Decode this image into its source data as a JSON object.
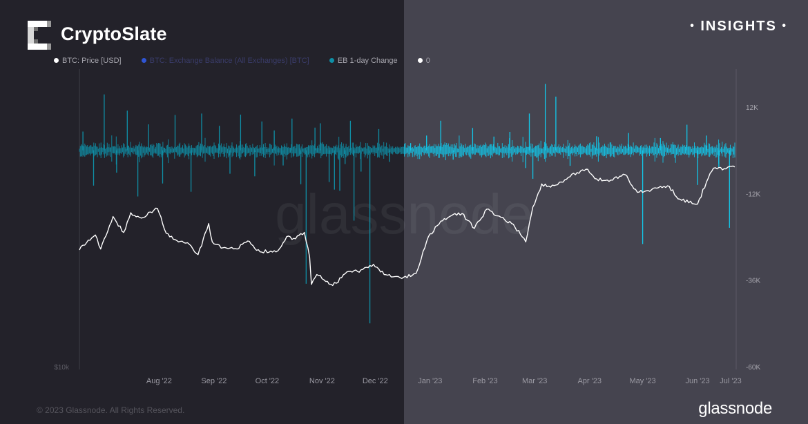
{
  "header": {
    "brand": "CryptoSlate",
    "badge": "INSIGHTS",
    "badge_dot": "•"
  },
  "watermark": "glassnode",
  "footer": {
    "copyright": "© 2023 Glassnode. All Rights Reserved.",
    "logo_text": "glassnode"
  },
  "colors": {
    "price": "#ffffff",
    "exchange_balance": "#2f55d4",
    "eb_change": "#0f8fa6",
    "eb_change_highlight": "#12c8ea",
    "zero": "#ffffff"
  },
  "legend": [
    {
      "label": "BTC: Price [USD]",
      "color": "#ffffff"
    },
    {
      "label": "BTC: Exchange Balance (All Exchanges) [BTC]",
      "color": "#2f55d4"
    },
    {
      "label": "EB 1-day Change",
      "color": "#0f8fa6"
    },
    {
      "label": "0",
      "color": "#ffffff"
    }
  ],
  "chart_data": {
    "type": "line",
    "x_ticks": [
      "Aug '22",
      "Sep '22",
      "Oct '22",
      "Nov '22",
      "Dec '22",
      "Jan '23",
      "Feb '23",
      "Mar '23",
      "Apr '23",
      "May '23",
      "Jun '23",
      "Jul '23"
    ],
    "y_left_ticks": [
      "$10k"
    ],
    "y_right_ticks": [
      "12K",
      "-12K",
      "-36K",
      "-60K"
    ],
    "y_right_range": [
      -60000,
      24000
    ],
    "grid": false,
    "series": [
      {
        "name": "BTC: Price [USD]",
        "axis": "left-log",
        "points": [
          [
            "2022-07-01",
            19300
          ],
          [
            "2022-07-06",
            20400
          ],
          [
            "2022-07-10",
            21000
          ],
          [
            "2022-07-13",
            19400
          ],
          [
            "2022-07-20",
            23300
          ],
          [
            "2022-07-26",
            21300
          ],
          [
            "2022-07-30",
            23800
          ],
          [
            "2022-08-05",
            23100
          ],
          [
            "2022-08-10",
            23900
          ],
          [
            "2022-08-14",
            24400
          ],
          [
            "2022-08-19",
            21200
          ],
          [
            "2022-08-26",
            20200
          ],
          [
            "2022-08-31",
            20100
          ],
          [
            "2022-09-06",
            18800
          ],
          [
            "2022-09-12",
            22400
          ],
          [
            "2022-09-14",
            20200
          ],
          [
            "2022-09-19",
            19500
          ],
          [
            "2022-09-28",
            19400
          ],
          [
            "2022-10-04",
            20300
          ],
          [
            "2022-10-11",
            19100
          ],
          [
            "2022-10-21",
            19200
          ],
          [
            "2022-10-26",
            20800
          ],
          [
            "2022-10-30",
            20600
          ],
          [
            "2022-11-05",
            21300
          ],
          [
            "2022-11-08",
            18500
          ],
          [
            "2022-11-09",
            15900
          ],
          [
            "2022-11-12",
            16800
          ],
          [
            "2022-11-21",
            15800
          ],
          [
            "2022-11-30",
            17100
          ],
          [
            "2022-12-05",
            17100
          ],
          [
            "2022-12-14",
            17800
          ],
          [
            "2022-12-20",
            16800
          ],
          [
            "2022-12-31",
            16550
          ],
          [
            "2023-01-07",
            16900
          ],
          [
            "2023-01-14",
            20800
          ],
          [
            "2023-01-21",
            22700
          ],
          [
            "2023-01-29",
            23700
          ],
          [
            "2023-02-02",
            23700
          ],
          [
            "2023-02-09",
            21800
          ],
          [
            "2023-02-16",
            24300
          ],
          [
            "2023-02-24",
            23200
          ],
          [
            "2023-03-03",
            22300
          ],
          [
            "2023-03-10",
            20200
          ],
          [
            "2023-03-14",
            24600
          ],
          [
            "2023-03-19",
            28000
          ],
          [
            "2023-03-24",
            27500
          ],
          [
            "2023-03-30",
            28300
          ],
          [
            "2023-04-11",
            30300
          ],
          [
            "2023-04-14",
            30400
          ],
          [
            "2023-04-19",
            28800
          ],
          [
            "2023-04-26",
            28400
          ],
          [
            "2023-05-05",
            29500
          ],
          [
            "2023-05-12",
            26700
          ],
          [
            "2023-05-20",
            27100
          ],
          [
            "2023-05-29",
            27700
          ],
          [
            "2023-06-05",
            25700
          ],
          [
            "2023-06-15",
            25000
          ],
          [
            "2023-06-20",
            28300
          ],
          [
            "2023-06-24",
            30600
          ],
          [
            "2023-06-30",
            30500
          ],
          [
            "2023-07-06",
            30800
          ]
        ]
      },
      {
        "name": "EB 1-day Change",
        "axis": "right",
        "spikes": [
          [
            "2022-07-03",
            5200
          ],
          [
            "2022-07-09",
            -9800
          ],
          [
            "2022-07-15",
            15500
          ],
          [
            "2022-07-22",
            -6200
          ],
          [
            "2022-07-28",
            11000
          ],
          [
            "2022-08-03",
            -12800
          ],
          [
            "2022-08-09",
            7200
          ],
          [
            "2022-08-17",
            -9200
          ],
          [
            "2022-08-24",
            9800
          ],
          [
            "2022-09-02",
            -11500
          ],
          [
            "2022-09-08",
            10200
          ],
          [
            "2022-09-18",
            6800
          ],
          [
            "2022-09-24",
            -6500
          ],
          [
            "2022-09-30",
            9900
          ],
          [
            "2022-10-08",
            -7200
          ],
          [
            "2022-10-12",
            8000
          ],
          [
            "2022-10-19",
            5500
          ],
          [
            "2022-10-24",
            -4200
          ],
          [
            "2022-10-29",
            8800
          ],
          [
            "2022-11-03",
            -9400
          ],
          [
            "2022-11-06",
            -37000
          ],
          [
            "2022-11-11",
            6300
          ],
          [
            "2022-11-14",
            7500
          ],
          [
            "2022-11-19",
            -8800
          ],
          [
            "2022-11-22",
            -10900
          ],
          [
            "2022-11-25",
            -11200
          ],
          [
            "2022-11-28",
            -3800
          ],
          [
            "2022-12-01",
            8200
          ],
          [
            "2022-12-03",
            -19500
          ],
          [
            "2022-12-07",
            -5900
          ],
          [
            "2022-12-12",
            -48000
          ],
          [
            "2022-12-17",
            5900
          ],
          [
            "2022-12-23",
            -3200
          ],
          [
            "2023-01-04",
            2000
          ],
          [
            "2023-01-13",
            4100
          ],
          [
            "2023-01-21",
            8200
          ],
          [
            "2023-01-28",
            -2600
          ],
          [
            "2023-02-08",
            6200
          ],
          [
            "2023-02-20",
            3800
          ],
          [
            "2023-03-01",
            5100
          ],
          [
            "2023-03-10",
            -4900
          ],
          [
            "2023-03-12",
            10200
          ],
          [
            "2023-03-14",
            -7900
          ],
          [
            "2023-03-21",
            18400
          ],
          [
            "2023-03-27",
            14900
          ],
          [
            "2023-04-04",
            -4300
          ],
          [
            "2023-04-19",
            3900
          ],
          [
            "2023-05-07",
            4800
          ],
          [
            "2023-05-15",
            -26000
          ],
          [
            "2023-05-25",
            3400
          ],
          [
            "2023-06-09",
            7100
          ],
          [
            "2023-06-15",
            -9600
          ],
          [
            "2023-06-20",
            4100
          ],
          [
            "2023-06-27",
            -4800
          ],
          [
            "2023-07-03",
            -21500
          ]
        ]
      }
    ]
  }
}
